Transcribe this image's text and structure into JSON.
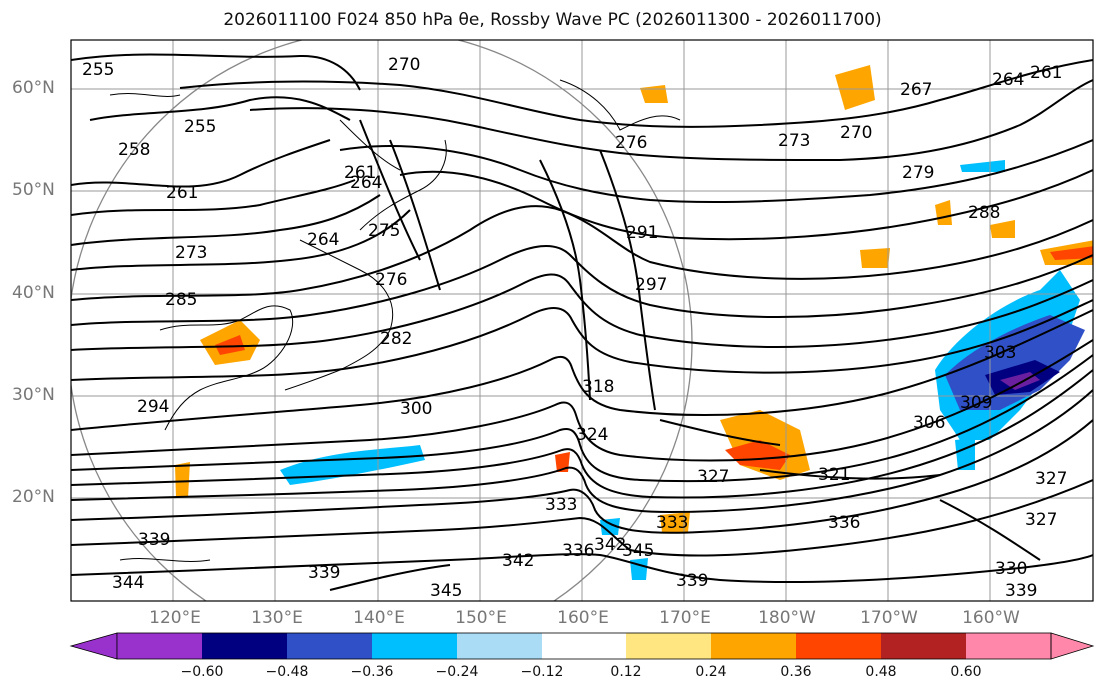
{
  "title": "2026011100 F024 850 hPa θe, Rossby Wave PC (2026011300 - 2026011700)",
  "lat_labels": [
    "60°N",
    "50°N",
    "40°N",
    "30°N",
    "20°N"
  ],
  "lon_labels": [
    "120°E",
    "130°E",
    "140°E",
    "150°E",
    "160°E",
    "170°E",
    "180°W",
    "170°W",
    "160°W"
  ],
  "contour_labels": [
    "255",
    "255",
    "258",
    "261",
    "264",
    "270",
    "267",
    "264",
    "261",
    "273",
    "270",
    "276",
    "273",
    "279",
    "288",
    "291",
    "297",
    "264",
    "275",
    "276",
    "282",
    "300",
    "303",
    "306",
    "309",
    "318",
    "324",
    "327",
    "321",
    "333",
    "336",
    "336",
    "342",
    "345",
    "342",
    "339",
    "339",
    "345",
    "339",
    "330",
    "327",
    "327",
    "294",
    "285",
    "339",
    "344",
    "333",
    "261"
  ],
  "colorbar": {
    "ticks": [
      "−0.60",
      "−0.48",
      "−0.36",
      "−0.24",
      "−0.12",
      "0.12",
      "0.24",
      "0.36",
      "0.48",
      "0.60"
    ],
    "colors": [
      "#9932cc",
      "#000080",
      "#3050c8",
      "#00bfff",
      "#aadcf5",
      "#ffffff",
      "#ffe680",
      "#ffa500",
      "#ff4500",
      "#b22222",
      "#ff88aa"
    ]
  }
}
